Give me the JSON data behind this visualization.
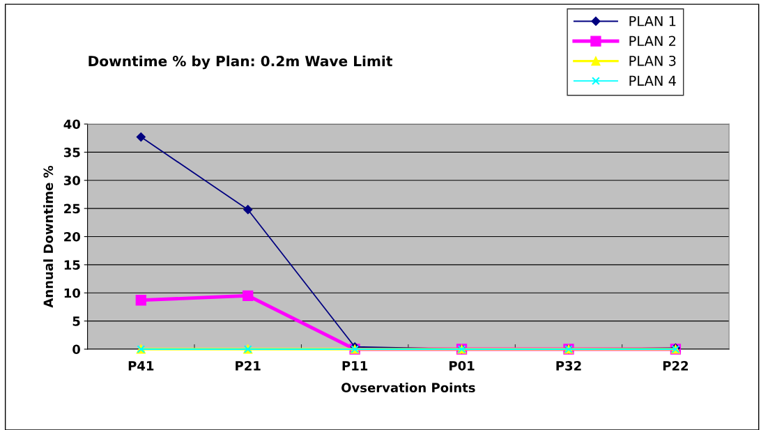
{
  "chart_data": {
    "type": "line",
    "title": "Downtime % by Plan: 0.2m Wave Limit",
    "xlabel": "Ovservation Points",
    "ylabel": "Annual Downtime %",
    "categories": [
      "P41",
      "P21",
      "P11",
      "P01",
      "P32",
      "P22"
    ],
    "series": [
      {
        "name": "PLAN 1",
        "color": "#000080",
        "marker": "diamond",
        "values": [
          37.7,
          24.8,
          0.4,
          0,
          0,
          0.2
        ]
      },
      {
        "name": "PLAN 2",
        "color": "#ff00ff",
        "marker": "square",
        "values": [
          8.7,
          9.5,
          0,
          0,
          0,
          0
        ]
      },
      {
        "name": "PLAN 3",
        "color": "#ffff00",
        "marker": "triangle",
        "values": [
          0,
          0,
          0,
          0,
          0,
          0
        ]
      },
      {
        "name": "PLAN 4",
        "color": "#00ffff",
        "marker": "cross",
        "values": [
          0,
          0,
          0,
          0,
          0,
          0
        ]
      }
    ],
    "ylim": [
      0,
      40
    ],
    "yticks": [
      0,
      5,
      10,
      15,
      20,
      25,
      30,
      35,
      40
    ],
    "grid": "y",
    "legend": "top right"
  }
}
